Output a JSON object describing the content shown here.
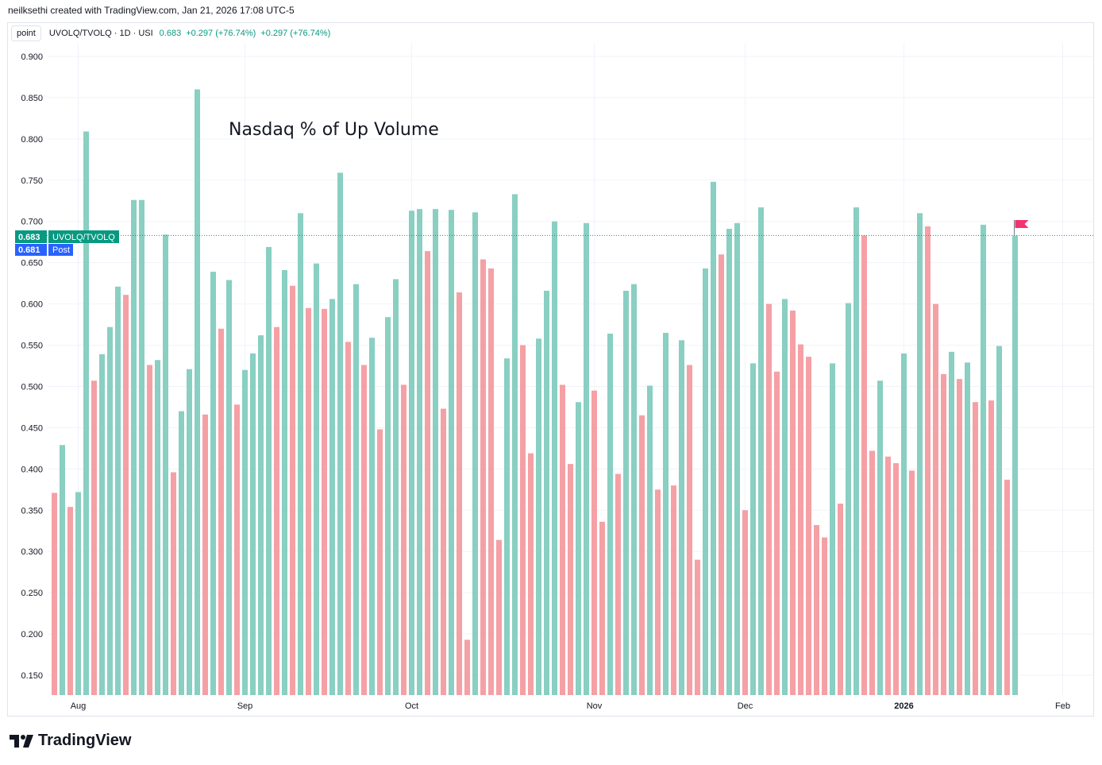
{
  "header": {
    "caption": "neilksethi created with TradingView.com, Jan 21, 2026 17:08 UTC-5"
  },
  "legend": {
    "mode_button": "point",
    "symbol": "UVOLQ/TVOLQ · 1D · USI",
    "last": "0.683",
    "change": "+0.297 (+76.74%)",
    "change2": "+0.297 (+76.74%)"
  },
  "price_labels": {
    "current_value": "0.683",
    "current_name": "UVOLQ/TVOLQ",
    "post_value": "0.681",
    "post_name": "Post"
  },
  "footer": {
    "brand": "TradingView"
  },
  "colors": {
    "up": "#89cfc2",
    "down": "#f5a0a5",
    "accent": "#089981",
    "post": "#2962ff",
    "flag": "#f2336d",
    "grid": "#f0f3fa"
  },
  "chart_data": {
    "type": "bar",
    "title": "Nasdaq % of Up Volume",
    "series_name": "UVOLQ/TVOLQ",
    "ylim": [
      0.125,
      0.9
    ],
    "yticks": [
      "0.900",
      "0.850",
      "0.800",
      "0.750",
      "0.700",
      "0.650",
      "0.600",
      "0.550",
      "0.500",
      "0.450",
      "0.400",
      "0.350",
      "0.300",
      "0.250",
      "0.200",
      "0.150"
    ],
    "xticks": [
      {
        "label": "Aug",
        "bar": 3
      },
      {
        "label": "Sep",
        "bar": 24
      },
      {
        "label": "Oct",
        "bar": 45
      },
      {
        "label": "Nov",
        "bar": 68
      },
      {
        "label": "Dec",
        "bar": 87
      },
      {
        "label": "2026",
        "bar": 107
      },
      {
        "label": "Feb",
        "bar": 127
      }
    ],
    "current_value": 0.683,
    "values": [
      0.371,
      0.429,
      0.354,
      0.372,
      0.809,
      0.507,
      0.539,
      0.572,
      0.621,
      0.611,
      0.726,
      0.726,
      0.526,
      0.532,
      0.684,
      0.396,
      0.47,
      0.521,
      0.86,
      0.466,
      0.639,
      0.57,
      0.629,
      0.478,
      0.52,
      0.54,
      0.562,
      0.669,
      0.572,
      0.641,
      0.622,
      0.71,
      0.595,
      0.649,
      0.594,
      0.606,
      0.759,
      0.554,
      0.624,
      0.526,
      0.559,
      0.448,
      0.584,
      0.63,
      0.502,
      0.713,
      0.715,
      0.664,
      0.715,
      0.473,
      0.714,
      0.614,
      0.193,
      0.711,
      0.654,
      0.643,
      0.314,
      0.534,
      0.733,
      0.55,
      0.419,
      0.558,
      0.616,
      0.7,
      0.502,
      0.406,
      0.481,
      0.698,
      0.495,
      0.336,
      0.564,
      0.394,
      0.616,
      0.624,
      0.465,
      0.501,
      0.375,
      0.565,
      0.38,
      0.556,
      0.526,
      0.29,
      0.643,
      0.748,
      0.66,
      0.691,
      0.698,
      0.35,
      0.528,
      0.717,
      0.6,
      0.518,
      0.606,
      0.592,
      0.551,
      0.536,
      0.332,
      0.317,
      0.528,
      0.358,
      0.601,
      0.717,
      0.683,
      0.422,
      0.507,
      0.415,
      0.407,
      0.54,
      0.398,
      0.71,
      0.694,
      0.6,
      0.515,
      0.542,
      0.509,
      0.529,
      0.481,
      0.696,
      0.483,
      0.549,
      0.387,
      0.683
    ],
    "directions": [
      "down",
      "up",
      "down",
      "up",
      "up",
      "down",
      "up",
      "up",
      "up",
      "down",
      "up",
      "up",
      "down",
      "up",
      "up",
      "down",
      "up",
      "up",
      "up",
      "down",
      "up",
      "down",
      "up",
      "down",
      "up",
      "up",
      "up",
      "up",
      "down",
      "up",
      "down",
      "up",
      "down",
      "up",
      "down",
      "up",
      "up",
      "down",
      "up",
      "down",
      "up",
      "down",
      "up",
      "up",
      "down",
      "up",
      "up",
      "down",
      "up",
      "down",
      "up",
      "down",
      "down",
      "up",
      "down",
      "down",
      "down",
      "up",
      "up",
      "down",
      "down",
      "up",
      "up",
      "up",
      "down",
      "down",
      "up",
      "up",
      "down",
      "down",
      "up",
      "down",
      "up",
      "up",
      "down",
      "up",
      "down",
      "up",
      "down",
      "up",
      "down",
      "down",
      "up",
      "up",
      "down",
      "up",
      "up",
      "down",
      "up",
      "up",
      "down",
      "down",
      "up",
      "down",
      "down",
      "down",
      "down",
      "down",
      "up",
      "down",
      "up",
      "up",
      "down",
      "down",
      "up",
      "down",
      "down",
      "up",
      "down",
      "up",
      "down",
      "down",
      "down",
      "up",
      "down",
      "up",
      "down",
      "up",
      "down",
      "up",
      "down",
      "up"
    ]
  }
}
